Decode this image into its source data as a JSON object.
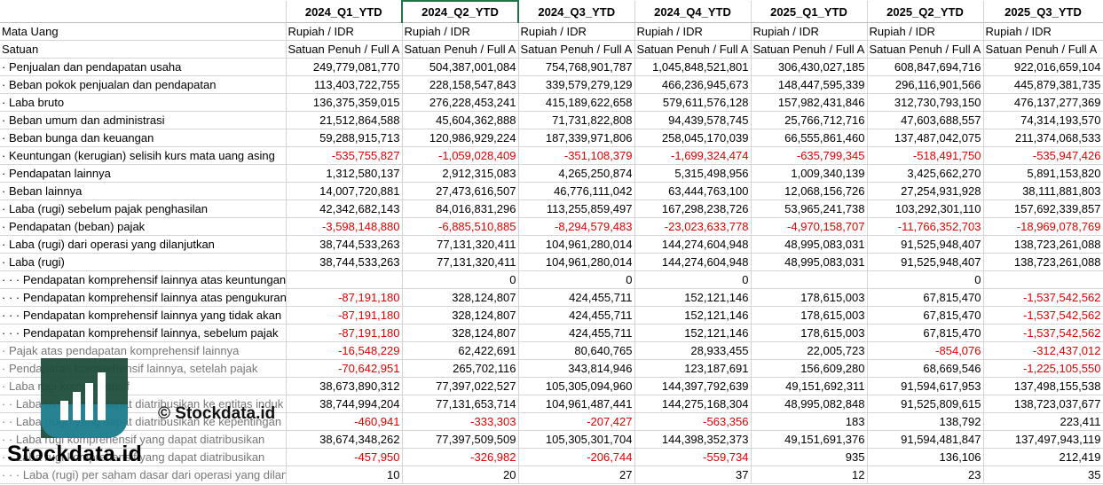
{
  "columns": [
    "",
    "2024_Q1_YTD",
    "2024_Q2_YTD",
    "2024_Q3_YTD",
    "2024_Q4_YTD",
    "2025_Q1_YTD",
    "2025_Q2_YTD",
    "2025_Q3_YTD"
  ],
  "rows": [
    {
      "label": "Mata Uang",
      "values": [
        "Rupiah / IDR",
        "Rupiah / IDR",
        "Rupiah / IDR",
        "Rupiah / IDR",
        "Rupiah / IDR",
        "Rupiah / IDR",
        "Rupiah / IDR"
      ]
    },
    {
      "label": "Satuan",
      "values": [
        "Satuan Penuh / Full A",
        "Satuan Penuh / Full A",
        "Satuan Penuh / Full A",
        "Satuan Penuh / Full A",
        "Satuan Penuh / Full A",
        "Satuan Penuh / Full A",
        "Satuan Penuh / Full A"
      ]
    },
    {
      "label": "· Penjualan dan pendapatan usaha",
      "values": [
        "249,779,081,770",
        "504,387,001,084",
        "754,768,901,787",
        "1,045,848,521,801",
        "306,430,027,185",
        "608,847,694,716",
        "922,016,659,104"
      ]
    },
    {
      "label": "· Beban pokok penjualan dan pendapatan",
      "values": [
        "113,403,722,755",
        "228,158,547,843",
        "339,579,279,129",
        "466,236,945,673",
        "148,447,595,339",
        "296,116,901,566",
        "445,879,381,735"
      ]
    },
    {
      "label": "· Laba bruto",
      "values": [
        "136,375,359,015",
        "276,228,453,241",
        "415,189,622,658",
        "579,611,576,128",
        "157,982,431,846",
        "312,730,793,150",
        "476,137,277,369"
      ]
    },
    {
      "label": "· Beban umum dan administrasi",
      "values": [
        "21,512,864,588",
        "45,604,362,888",
        "71,731,822,808",
        "94,439,578,745",
        "25,766,712,716",
        "47,603,688,557",
        "74,314,193,570"
      ]
    },
    {
      "label": "· Beban bunga dan keuangan",
      "values": [
        "59,288,915,713",
        "120,986,929,224",
        "187,339,971,806",
        "258,045,170,039",
        "66,555,861,460",
        "137,487,042,075",
        "211,374,068,533"
      ]
    },
    {
      "label": "· Keuntungan (kerugian) selisih kurs mata uang asing",
      "values": [
        "-535,755,827",
        "-1,059,028,409",
        "-351,108,379",
        "-1,699,324,474",
        "-635,799,345",
        "-518,491,750",
        "-535,947,426"
      ]
    },
    {
      "label": "· Pendapatan lainnya",
      "values": [
        "1,312,580,137",
        "2,912,315,083",
        "4,265,250,874",
        "5,315,498,956",
        "1,009,340,139",
        "3,425,662,270",
        "5,891,153,820"
      ]
    },
    {
      "label": "· Beban lainnya",
      "values": [
        "14,007,720,881",
        "27,473,616,507",
        "46,776,111,042",
        "63,444,763,100",
        "12,068,156,726",
        "27,254,931,928",
        "38,111,881,803"
      ]
    },
    {
      "label": "· Laba (rugi) sebelum pajak penghasilan",
      "values": [
        "42,342,682,143",
        "84,016,831,296",
        "113,255,859,497",
        "167,298,238,726",
        "53,965,241,738",
        "103,292,301,110",
        "157,692,339,857"
      ]
    },
    {
      "label": "· Pendapatan (beban) pajak",
      "values": [
        "-3,598,148,880",
        "-6,885,510,885",
        "-8,294,579,483",
        "-23,023,633,778",
        "-4,970,158,707",
        "-11,766,352,703",
        "-18,969,078,769"
      ]
    },
    {
      "label": "· Laba (rugi) dari operasi yang dilanjutkan",
      "values": [
        "38,744,533,263",
        "77,131,320,411",
        "104,961,280,014",
        "144,274,604,948",
        "48,995,083,031",
        "91,525,948,407",
        "138,723,261,088"
      ]
    },
    {
      "label": "· Laba (rugi)",
      "values": [
        "38,744,533,263",
        "77,131,320,411",
        "104,961,280,014",
        "144,274,604,948",
        "48,995,083,031",
        "91,525,948,407",
        "138,723,261,088"
      ]
    },
    {
      "label": "· · · Pendapatan komprehensif lainnya atas keuntungan (kerugian) hasil re",
      "values": [
        "",
        "0",
        "0",
        "0",
        "",
        "0",
        ""
      ]
    },
    {
      "label": "· · · Pendapatan komprehensif lainnya atas pengukuran",
      "values": [
        "-87,191,180",
        "328,124,807",
        "424,455,711",
        "152,121,146",
        "178,615,003",
        "67,815,470",
        "-1,537,542,562"
      ]
    },
    {
      "label": "· · · Pendapatan komprehensif lainnya yang tidak akan",
      "values": [
        "-87,191,180",
        "328,124,807",
        "424,455,711",
        "152,121,146",
        "178,615,003",
        "67,815,470",
        "-1,537,542,562"
      ]
    },
    {
      "label": "· · · Pendapatan komprehensif lainnya, sebelum pajak",
      "values": [
        "-87,191,180",
        "328,124,807",
        "424,455,711",
        "152,121,146",
        "178,615,003",
        "67,815,470",
        "-1,537,542,562"
      ]
    },
    {
      "label": "· Pajak atas pendapatan komprehensif lainnya",
      "values": [
        "-16,548,229",
        "62,422,691",
        "80,640,765",
        "28,933,455",
        "22,005,723",
        "-854,076",
        "-312,437,012"
      ]
    },
    {
      "label": "· Pendapatan komprehensif lainnya, setelah pajak",
      "values": [
        "-70,642,951",
        "265,702,116",
        "343,814,946",
        "123,187,691",
        "156,609,280",
        "68,669,546",
        "-1,225,105,550"
      ]
    },
    {
      "label": "· Laba rugi komprehensif",
      "values": [
        "38,673,890,312",
        "77,397,022,527",
        "105,305,094,960",
        "144,397,792,639",
        "49,151,692,311",
        "91,594,617,953",
        "137,498,155,538"
      ]
    },
    {
      "label": "· · Laba (rugi) yang dapat diatribusikan ke entitas induk",
      "values": [
        "38,744,994,204",
        "77,131,653,714",
        "104,961,487,441",
        "144,275,168,304",
        "48,995,082,848",
        "91,525,809,615",
        "138,723,037,677"
      ]
    },
    {
      "label": "· · Laba (rugi) yang dapat diatribusikan ke kepentingan",
      "values": [
        "-460,941",
        "-333,303",
        "-207,427",
        "-563,356",
        "183",
        "138,792",
        "223,411"
      ]
    },
    {
      "label": "· · Laba rugi komprehensif yang dapat diatribusikan",
      "values": [
        "38,674,348,262",
        "77,397,509,509",
        "105,305,301,704",
        "144,398,352,373",
        "49,151,691,376",
        "91,594,481,847",
        "137,497,943,119"
      ]
    },
    {
      "label": "· · Laba rugi komprehensif yang dapat diatribusikan",
      "values": [
        "-457,950",
        "-326,982",
        "-206,744",
        "-559,734",
        "935",
        "136,106",
        "212,419"
      ]
    },
    {
      "label": "· · · Laba (rugi) per saham dasar dari operasi yang dilanjutkan",
      "values": [
        "10",
        "20",
        "27",
        "37",
        "12",
        "23",
        "35"
      ]
    }
  ],
  "watermark": {
    "copyright": "© Stockdata.id",
    "brand": "Stockdata.id",
    "logo": "bar-chart-logo"
  },
  "colors": {
    "negative": "#e00000",
    "selection": "#217346",
    "logo_dark": "#1f4d3d",
    "logo_teal": "#1c7c8c"
  }
}
